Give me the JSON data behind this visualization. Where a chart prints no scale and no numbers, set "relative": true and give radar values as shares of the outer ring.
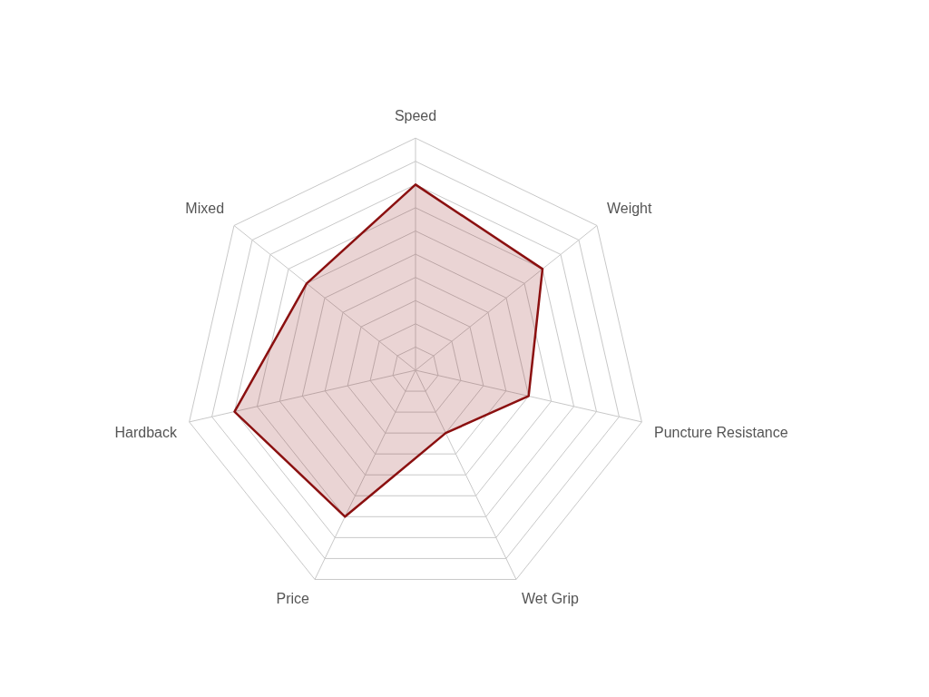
{
  "chart_data": {
    "type": "radar",
    "relative": true,
    "categories": [
      "Speed",
      "Weight",
      "Puncture Resistance",
      "Wet Grip",
      "Price",
      "Hardback",
      "Mixed"
    ],
    "series": [
      {
        "color": "#8b1010",
        "values": [
          0.8,
          0.7,
          0.5,
          0.3,
          0.7,
          0.8,
          0.6
        ]
      }
    ],
    "legend": false
  }
}
